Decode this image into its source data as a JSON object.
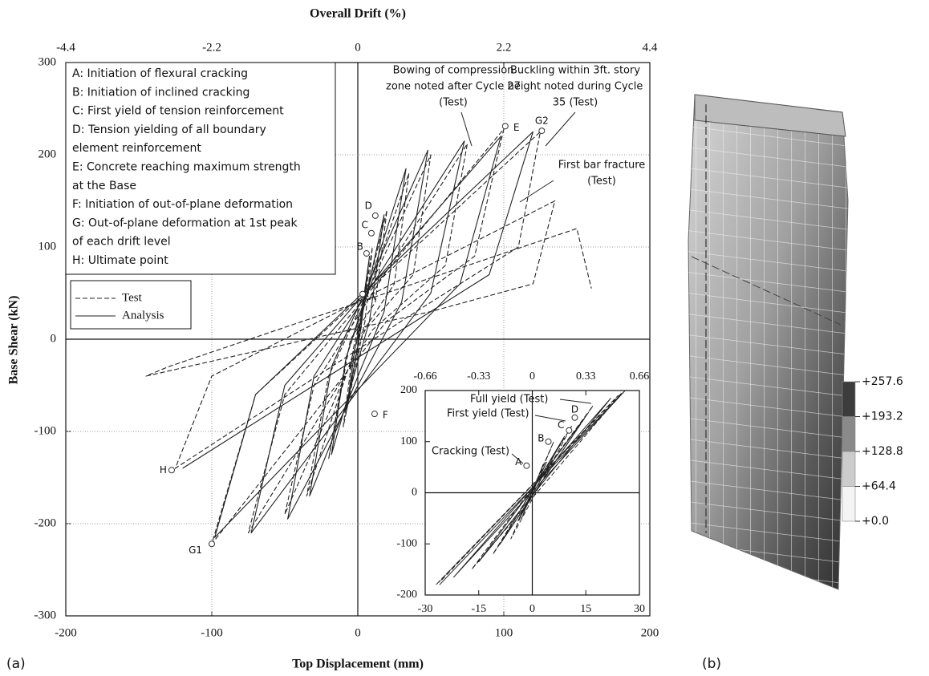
{
  "panels": [
    "(a)",
    "(b)"
  ],
  "chart_data": [
    {
      "type": "line",
      "xlabel": "Top Displacement (mm)",
      "ylabel": "Base Shear (kN)",
      "x2label": "Overall Drift (%)",
      "xlim": [
        -200,
        200
      ],
      "xticks": [
        -200,
        -100,
        0,
        100,
        200
      ],
      "ylim": [
        -300,
        300
      ],
      "yticks": [
        -300,
        -200,
        -100,
        0,
        100,
        200,
        300
      ],
      "x2lim": [
        -4.4,
        4.4
      ],
      "x2ticks": [
        -4.4,
        -2.2,
        0,
        2.2,
        4.4
      ],
      "grid": true,
      "zero_lines": true,
      "legend": "upper left",
      "key_notes": [
        "A: Initiation of flexural  cracking",
        "B:  Initiation of inclined cracking",
        "C: First yield of tension reinforcement",
        "D: Tension yielding of all boundary",
        "element reinforcement",
        "E: Concrete reaching maximum strength",
        "at the Base",
        "F: Initiation of out-of-plane deformation",
        "G: Out-of-plane deformation at 1st peak",
        "of each drift level",
        "H: Ultimate point"
      ],
      "annotations": [
        [
          "Bowing of compression",
          "zone noted after Cycle 27",
          "(Test)"
        ],
        [
          "Buckling within 3ft. story",
          "height noted during Cycle",
          "35 (Test)"
        ],
        [
          "First bar fracture",
          "(Test)"
        ]
      ],
      "series": [
        {
          "name": "Test",
          "color": "#222222",
          "style": "dashed",
          "x": [
            0,
            5,
            2,
            -5,
            0,
            10,
            5,
            -10,
            -3,
            20,
            12,
            -5,
            -20,
            -8,
            35,
            25,
            0,
            -35,
            -20,
            50,
            38,
            5,
            -50,
            -30,
            75,
            60,
            10,
            -75,
            -50,
            100,
            80,
            20,
            -100,
            -70,
            125,
            110,
            40,
            -125,
            -100,
            135,
            120,
            50,
            -145,
            -130,
            150,
            160
          ],
          "values": [
            0,
            50,
            10,
            -50,
            -5,
            100,
            20,
            -95,
            -10,
            140,
            40,
            0,
            -130,
            -20,
            180,
            60,
            0,
            -170,
            -40,
            200,
            70,
            10,
            -190,
            -50,
            212,
            80,
            10,
            -210,
            -60,
            228,
            90,
            20,
            -222,
            -60,
            225,
            100,
            30,
            -140,
            -40,
            150,
            60,
            30,
            -40,
            -30,
            120,
            55
          ]
        },
        {
          "name": "Analysis",
          "color": "#222222",
          "style": "solid",
          "x": [
            0,
            8,
            2,
            -8,
            -2,
            18,
            8,
            -18,
            -8,
            33,
            18,
            -33,
            -18,
            48,
            30,
            -48,
            -30,
            73,
            50,
            -73,
            -50,
            98,
            70,
            -98,
            -70,
            120,
            90,
            -120
          ],
          "values": [
            0,
            90,
            10,
            -80,
            -10,
            135,
            20,
            -125,
            -20,
            185,
            30,
            -170,
            -30,
            205,
            40,
            -195,
            -40,
            215,
            50,
            -210,
            -50,
            220,
            60,
            -215,
            -60,
            225,
            70,
            -140
          ]
        }
      ],
      "markers": [
        {
          "label": "A",
          "x": 3.3,
          "y": 49
        },
        {
          "label": "B",
          "x": 6,
          "y": 93
        },
        {
          "label": "C",
          "x": 9.3,
          "y": 115
        },
        {
          "label": "D",
          "x": 12,
          "y": 134
        },
        {
          "label": "E",
          "x": 101,
          "y": 231
        },
        {
          "label": "F",
          "x": 11.5,
          "y": -81
        },
        {
          "label": "G1",
          "x": -100,
          "y": -222
        },
        {
          "label": "G2",
          "x": 126,
          "y": 226
        },
        {
          "label": "H",
          "x": -127.5,
          "y": -142
        }
      ]
    },
    {
      "type": "line",
      "xlim": [
        -30,
        30
      ],
      "xticks": [
        -30,
        -15,
        0,
        15,
        30
      ],
      "ylim": [
        -200,
        200
      ],
      "yticks": [
        -200,
        -100,
        0,
        100,
        200
      ],
      "x2lim": [
        -0.66,
        0.66
      ],
      "x2ticks": [
        -0.66,
        -0.33,
        0,
        0.33,
        0.66
      ],
      "grid": false,
      "zero_lines": true,
      "annotations": [
        [
          "Full yield (Test)"
        ],
        [
          "First yield (Test)"
        ],
        [
          "Cracking (Test)"
        ]
      ],
      "series": [
        {
          "name": "Test",
          "color": "#222222",
          "style": "dashed",
          "x": [
            0,
            3,
            -3,
            6,
            -6,
            11,
            -11,
            17,
            -17,
            25,
            -27,
            24,
            -26
          ],
          "values": [
            0,
            55,
            -50,
            100,
            -90,
            130,
            -120,
            170,
            -150,
            195,
            -180,
            190,
            -175
          ]
        },
        {
          "name": "Analysis",
          "color": "#222222",
          "style": "solid",
          "x": [
            0,
            4,
            -4,
            9,
            -9,
            15,
            -15,
            22,
            -22,
            26,
            -26
          ],
          "values": [
            0,
            60,
            -55,
            110,
            -100,
            150,
            -135,
            185,
            -165,
            200,
            -180
          ]
        }
      ],
      "markers": [
        {
          "label": "A",
          "x": -1.6,
          "y": 53
        },
        {
          "label": "B",
          "x": 4.5,
          "y": 100
        },
        {
          "label": "C",
          "x": 10.3,
          "y": 122
        },
        {
          "label": "D",
          "x": 11.9,
          "y": 147
        }
      ]
    },
    {
      "type": "colorbar",
      "lim": [
        0,
        257.6
      ],
      "ticks": [
        {
          "value": 0,
          "label": "+0.0"
        },
        {
          "value": 64.4,
          "label": "+64.4"
        },
        {
          "value": 128.8,
          "label": "+128.8"
        },
        {
          "value": 193.2,
          "label": "+193.2"
        },
        {
          "value": 257.6,
          "label": "+257.6"
        }
      ],
      "colors": [
        "#f4f4f4",
        "#cccccc",
        "#8a8a8a",
        "#3c3c3c"
      ]
    }
  ]
}
